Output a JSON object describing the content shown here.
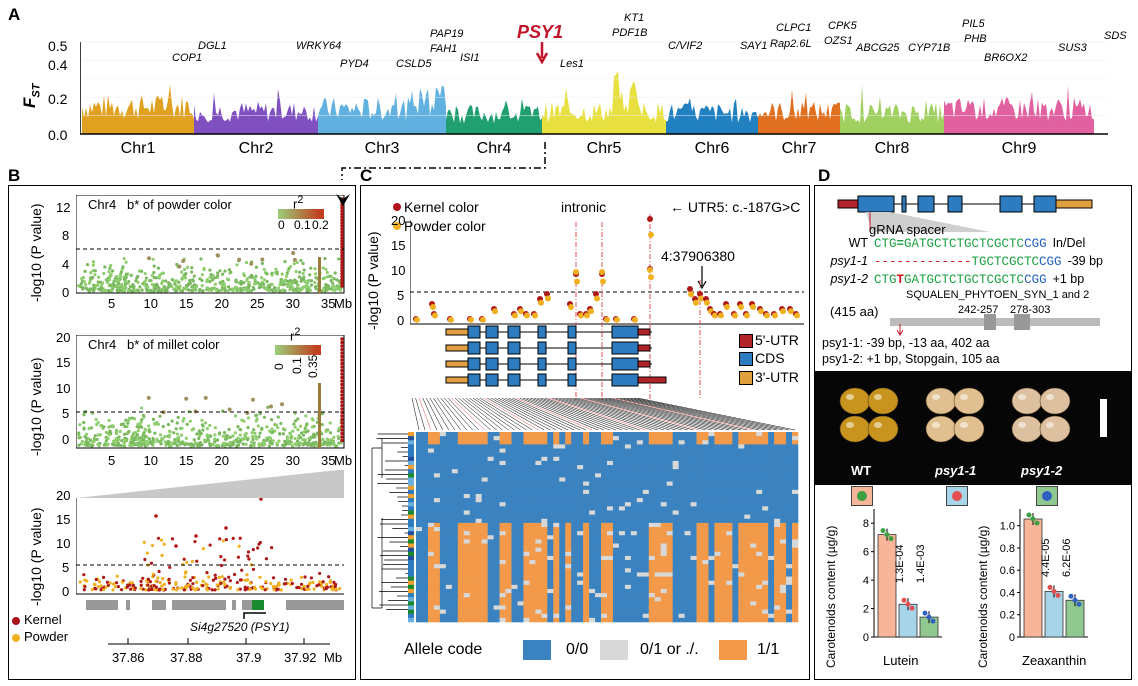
{
  "panels": {
    "a": "A",
    "b": "B",
    "c": "C",
    "d": "D"
  },
  "panelA": {
    "ylabel": "F",
    "ylabel_sub": "ST",
    "yticks": [
      "0.5",
      "0.4",
      "0.2",
      "0.0"
    ],
    "highlight": "PSY1",
    "chromosomes": [
      "Chr1",
      "Chr2",
      "Chr3",
      "Chr4",
      "Chr5",
      "Chr6",
      "Chr7",
      "Chr8",
      "Chr9"
    ],
    "chrom_colors": [
      "#e0a020",
      "#8050c0",
      "#60b0e0",
      "#20a070",
      "#e8e040",
      "#2080c0",
      "#e07020",
      "#a0d060",
      "#e060a0"
    ],
    "genes": [
      "COP1",
      "DGL1",
      "WRKY64",
      "PYD4",
      "CSLD5",
      "PAP19",
      "FAH1",
      "ISI1",
      "Les1",
      "KT1",
      "PDF1B",
      "C/VIF2",
      "SAY1",
      "CLPC1",
      "Rap2.6L",
      "CPK5",
      "OZS1",
      "ABCG25",
      "CYP71B",
      "PIL5",
      "PHB",
      "BR6OX2",
      "SUS3",
      "SDS"
    ]
  },
  "panelB": {
    "top_title_chr": "Chr4",
    "top_title": "b* of powder color",
    "mid_title_chr": "Chr4",
    "mid_title": "b* of millet color",
    "legend_r2": "r",
    "legend_r2_sup": "2",
    "top_legend_ticks": [
      "0",
      "0.1",
      "0.2"
    ],
    "mid_legend_ticks": [
      "0",
      "0.1",
      "0.35"
    ],
    "top_yticks": [
      "12",
      "8",
      "4",
      "0"
    ],
    "mid_yticks": [
      "20",
      "15",
      "10",
      "5",
      "0"
    ],
    "bot_yticks": [
      "20",
      "15",
      "10",
      "5",
      "0"
    ],
    "xticks": [
      "5",
      "10",
      "15",
      "20",
      "25",
      "30",
      "35"
    ],
    "xunit": "Mb",
    "ylabel": "-log10 (P value)",
    "kernel": "Kernel",
    "powder": "Powder",
    "gene": "Si4g27520 (PSY1)",
    "bot_xticks": [
      "37.86",
      "37.88",
      "37.9",
      "37.92"
    ],
    "bot_xunit": "Mb"
  },
  "panelC": {
    "legend_kernel": "Kernel color",
    "legend_powder": "Powder color",
    "annot_intronic": "intronic",
    "annot_utr5": "UTR5: c.-187G>C",
    "annot_snp": "4:37906380",
    "yticks": [
      "20",
      "15",
      "10",
      "5",
      "0"
    ],
    "ylabel": "-log10 (P value)",
    "struct_legend": [
      "5'-UTR",
      "CDS",
      "3'-UTR"
    ],
    "allele_code": "Allele code",
    "allele_labels": [
      "0/0",
      "0/1 or ./.",
      "1/1"
    ],
    "allele_colors": [
      "#3a82c0",
      "#d8d8d8",
      "#f39a4a"
    ]
  },
  "panelD": {
    "grna": "gRNA spacer",
    "rows": [
      {
        "name": "WT",
        "seq_a": "CTG",
        "seq_mid": "=",
        "seq_b": "GATGCTCTGCTCGCTC",
        "pam": "CGG",
        "indel": "In/Del"
      },
      {
        "name": "psy1-1",
        "seq_a": "",
        "seq_mid": "-------------",
        "seq_b": "TGCTCGCTC",
        "pam": "CGG",
        "indel": "-39 bp"
      },
      {
        "name": "psy1-2",
        "seq_a": "CTG",
        "seq_mid": "T",
        "seq_b": "GATGCTCTGCTCGCTC",
        "pam": "CGG",
        "indel": "+1 bp"
      }
    ],
    "domain": "SQUALEN_PHYTOEN_SYN_1 and 2",
    "domain_pos1": "242-257",
    "domain_pos2": "278-303",
    "aa": "(415 aa)",
    "mut1": "psy1-1: -39 bp, -13 aa, 402 aa",
    "mut2": "psy1-2: +1 bp, Stopgain, 105 aa",
    "photo_labels": [
      "WT",
      "psy1-1",
      "psy1-2"
    ],
    "bar_ylabel": "Carotenoids content (µg/g)",
    "lutein_yticks": [
      "8",
      "6",
      "4",
      "2",
      "0"
    ],
    "zea_yticks": [
      "1.0",
      "0.8",
      "0.6",
      "0.4",
      "0.2",
      "0"
    ],
    "lutein_p": [
      "1.3E-04",
      "1.4E-03"
    ],
    "zea_p": [
      "4.4E-05",
      "6.2E-06"
    ],
    "lutein_label": "Lutein",
    "zea_label": "Zeaxanthin"
  },
  "chart_data": [
    {
      "type": "bar",
      "title": "",
      "categories": [
        "WT",
        "psy1-1",
        "psy1-2"
      ],
      "series": [
        {
          "name": "Lutein",
          "values": [
            7.2,
            2.3,
            1.4
          ]
        }
      ],
      "ylim": [
        0,
        9
      ],
      "ylabel": "Carotenoids content (µg/g)",
      "xlabel": "Lutein",
      "colors": [
        "#f7b59a",
        "#a8d4ea",
        "#90c890"
      ]
    },
    {
      "type": "bar",
      "title": "",
      "categories": [
        "WT",
        "psy1-1",
        "psy1-2"
      ],
      "series": [
        {
          "name": "Zeaxanthin",
          "values": [
            1.06,
            0.41,
            0.33
          ]
        }
      ],
      "ylim": [
        0,
        1.15
      ],
      "ylabel": "Carotenoids content (µg/g)",
      "xlabel": "Zeaxanthin",
      "colors": [
        "#f7b59a",
        "#a8d4ea",
        "#90c890"
      ]
    }
  ]
}
